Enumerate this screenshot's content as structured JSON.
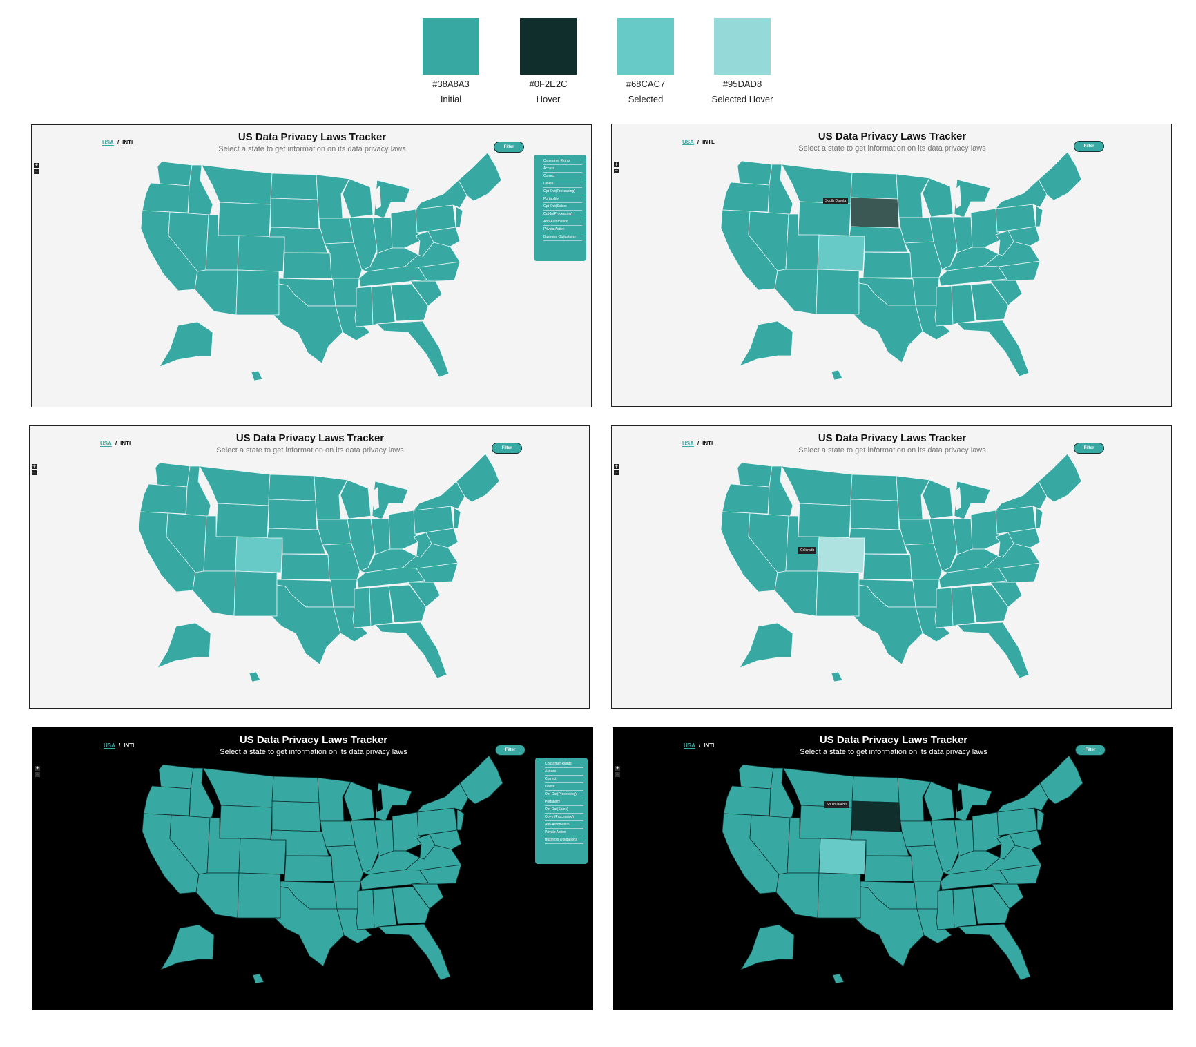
{
  "palette": [
    {
      "hex": "#38A8A3",
      "name": "Initial"
    },
    {
      "hex": "#0F2E2C",
      "name": "Hover"
    },
    {
      "hex": "#68CAC7",
      "name": "Selected"
    },
    {
      "hex": "#95DAD8",
      "name": "Selected Hover"
    }
  ],
  "app": {
    "nav_usa": "USA",
    "nav_sep": "/",
    "nav_intl": "INTL",
    "title": "US Data Privacy Laws Tracker",
    "subtitle": "Select a state to get information on its data privacy laws",
    "filter_label": "Filter",
    "zoom_in": "+",
    "zoom_out": "−"
  },
  "filter_menu": {
    "items": [
      "Consumer Rights",
      "Access",
      "Correct",
      "Delete",
      "Opt-Out(Processing)",
      "Portability",
      "Opt-Out(Sales)",
      "Opt-In(Processing)",
      "Anti-Automation",
      "Private Action",
      "Business Obligations"
    ]
  },
  "tooltips": {
    "south_dakota": "South Dakota",
    "colorado": "Colorado"
  },
  "panels": [
    {
      "theme": "light",
      "state": "initial",
      "filter_open": true
    },
    {
      "theme": "light",
      "state": "hover-south-dakota",
      "filter_open": false
    },
    {
      "theme": "light",
      "state": "selected-colorado",
      "filter_open": false
    },
    {
      "theme": "light",
      "state": "selected-hover-colorado",
      "filter_open": false
    },
    {
      "theme": "dark",
      "state": "initial",
      "filter_open": true
    },
    {
      "theme": "dark",
      "state": "hover-south-dakota",
      "filter_open": false
    }
  ]
}
